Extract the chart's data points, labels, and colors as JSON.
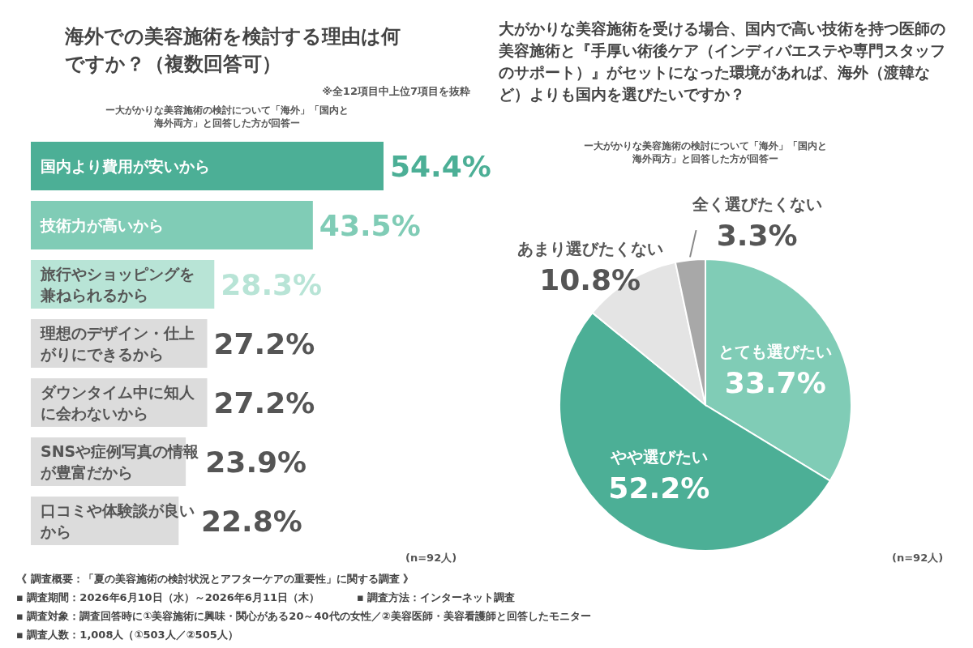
{
  "chart_data": [
    {
      "type": "bar",
      "orientation": "horizontal",
      "relative": false,
      "data_labels": true,
      "title": "海外での美容施術を検討する理由は何ですか？（複数回答可）",
      "subtitle": "ー大がかりな美容施術の検討について「海外」「国内と海外両方」と回答した方が回答ー",
      "categories": [
        "国内より費用が安いから",
        "技術力が高いから",
        "旅行やショッピングを兼ねられるから",
        "理想のデザイン・仕上がりにできるから",
        "ダウンタイム中に知人に会わないから",
        "SNSや症例写真の情報が豊富だから",
        "口コミや体験談が良いから"
      ],
      "values": [
        54.4,
        43.5,
        28.3,
        27.2,
        27.2,
        23.9,
        22.8
      ],
      "value_labels": [
        "54.4%",
        "43.5%",
        "28.3%",
        "27.2%",
        "27.2%",
        "23.9%",
        "22.8%"
      ],
      "colors": [
        "#4caf96",
        "#80ccb6",
        "#b8e4d6",
        "#dcdcdc",
        "#dcdcdc",
        "#dcdcdc",
        "#dcdcdc"
      ],
      "annotations": [
        "※全12項目中上位7項目を抜粋",
        "(n=92人)",
        "《 調査概要：「夏の美容施術の検討状況とアフターケアの重要性」に関する調査 》",
        "▪ 調査期間：2026年6月10日（水）～2026年6月11日（木）",
        "▪ 調査方法：インターネット調査",
        "▪ 調査対象：調査回答時に①美容施術に興味・関心がある20～40代の女性／②美容医師・美容看護師と回答したモニター",
        "▪ 調査人数：1,008人（①503人／②505人）"
      ]
    },
    {
      "type": "pie",
      "data_labels": true,
      "title": "大がかりな美容施術を受ける場合、国内で高い技術を持つ医師の美容施術と『手厚い術後ケア（インディバエステや専門スタッフのサポート）』がセットになった環境があれば、海外（渡韓など）よりも国内を選びたいですか？",
      "subtitle": "ー大がかりな美容施術の検討について「海外」「国内と海外両方」と回答した方が回答ー",
      "categories": [
        "とても選びたい",
        "やや選びたい",
        "あまり選びたくない",
        "全く選びたくない"
      ],
      "values": [
        33.7,
        52.2,
        10.8,
        3.3
      ],
      "value_labels": [
        "33.7%",
        "52.2%",
        "10.8%",
        "3.3%"
      ],
      "colors": [
        "#80ccb6",
        "#4caf96",
        "#e4e4e4",
        "#a8a8a8"
      ],
      "annotations": [
        "(n=92人)"
      ]
    }
  ]
}
